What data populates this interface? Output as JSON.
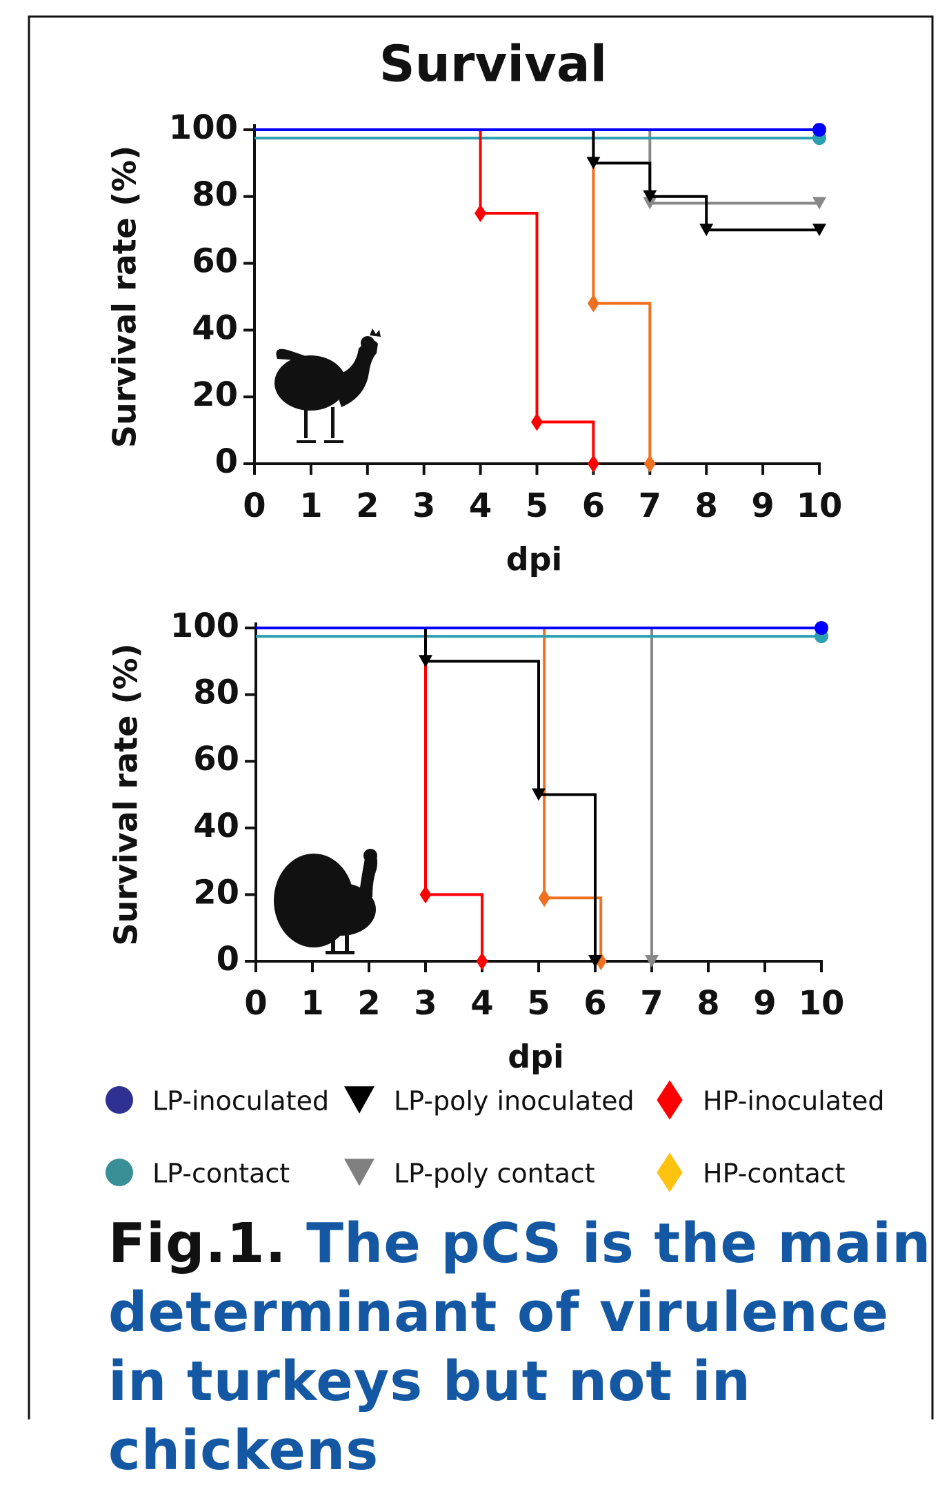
{
  "title": "Survival",
  "legend": {
    "columns": 3
  },
  "chart_data": [
    {
      "type": "line",
      "step": true,
      "xlabel": "dpi",
      "ylabel": "Survival rate (%)",
      "xlim": [
        0,
        10
      ],
      "xticks": [
        0,
        1,
        2,
        3,
        4,
        5,
        6,
        7,
        8,
        9,
        10
      ],
      "ylim": [
        0,
        100
      ],
      "yticks": [
        0,
        20,
        40,
        60,
        80,
        100
      ],
      "series": [
        {
          "name": "LP-inoculated",
          "color": "#0000ff",
          "legend_color": "#2e3192",
          "marker": "circle",
          "x": [
            0,
            10
          ],
          "values": [
            100,
            100
          ]
        },
        {
          "name": "LP-poly inoculated",
          "color": "#000000",
          "legend_color": "#000000",
          "marker": "triangle",
          "x": [
            0,
            6,
            7,
            8,
            10
          ],
          "values": [
            100,
            90,
            80,
            70,
            70
          ]
        },
        {
          "name": "HP-inoculated",
          "color": "#ff0000",
          "legend_color": "#ff0000",
          "marker": "diamond",
          "x": [
            0,
            4,
            5,
            6
          ],
          "values": [
            100,
            75,
            12.5,
            0
          ]
        },
        {
          "name": "LP-contact",
          "color": "#2aa0b0",
          "legend_color": "#3a8f96",
          "marker": "circle",
          "x": [
            0,
            10
          ],
          "values": [
            97.5,
            97.5
          ]
        },
        {
          "name": "LP-poly contact",
          "color": "#888888",
          "legend_color": "#808080",
          "marker": "triangle",
          "x": [
            0,
            7,
            10
          ],
          "values": [
            100,
            78,
            78
          ]
        },
        {
          "name": "HP-contact",
          "color": "#f07020",
          "legend_color": "#ffc20e",
          "marker": "diamond",
          "x": [
            0,
            6,
            7
          ],
          "values": [
            100,
            48,
            0
          ]
        }
      ]
    },
    {
      "type": "line",
      "step": true,
      "xlabel": "dpi",
      "ylabel": "Survival rate (%)",
      "xlim": [
        0,
        10
      ],
      "xticks": [
        0,
        1,
        2,
        3,
        4,
        5,
        6,
        7,
        8,
        9,
        10
      ],
      "ylim": [
        0,
        100
      ],
      "yticks": [
        0,
        20,
        40,
        60,
        80,
        100
      ],
      "series": [
        {
          "color": "#0000ff",
          "marker": "circle",
          "x": [
            0,
            10
          ],
          "values": [
            100,
            100
          ]
        },
        {
          "color": "#000000",
          "marker": "triangle",
          "x": [
            0,
            3,
            5,
            6
          ],
          "values": [
            100,
            90,
            50,
            0
          ]
        },
        {
          "color": "#ff0000",
          "marker": "diamond",
          "x": [
            0,
            3,
            4
          ],
          "values": [
            100,
            20,
            0
          ]
        },
        {
          "color": "#2aa0b0",
          "marker": "circle",
          "x": [
            0,
            10
          ],
          "values": [
            97.5,
            97.5
          ]
        },
        {
          "color": "#888888",
          "marker": "triangle",
          "x": [
            0,
            7
          ],
          "values": [
            100,
            0
          ]
        },
        {
          "color": "#f07020",
          "marker": "diamond",
          "x": [
            0,
            5.1,
            6.1
          ],
          "values": [
            100,
            19,
            0
          ]
        }
      ]
    }
  ],
  "caption": {
    "label": "Fig.1.",
    "text": "The pCS is the main determinant of virulence in turkeys but not in chickens"
  }
}
